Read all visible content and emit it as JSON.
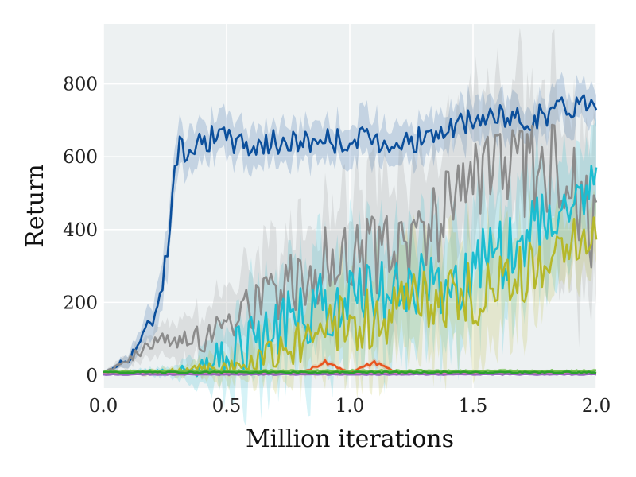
{
  "chart_data": {
    "type": "line",
    "title": "",
    "xlabel": "Million iterations",
    "ylabel": "Return",
    "xlim": [
      0.0,
      2.0
    ],
    "ylim": [
      -35,
      965
    ],
    "x_ticks": [
      0.0,
      0.5,
      1.0,
      1.5,
      2.0
    ],
    "x_tick_labels": [
      "0.0",
      "0.5",
      "1.0",
      "1.5",
      "2.0"
    ],
    "y_ticks": [
      0,
      200,
      400,
      600,
      800
    ],
    "y_tick_labels": [
      "0",
      "200",
      "400",
      "600",
      "800"
    ],
    "grid": true,
    "legend": "none",
    "background_color": "#edf1f2",
    "x": [
      0.0,
      0.1,
      0.2,
      0.25,
      0.3,
      0.35,
      0.4,
      0.5,
      0.6,
      0.7,
      0.8,
      0.9,
      1.0,
      1.1,
      1.2,
      1.3,
      1.4,
      1.5,
      1.6,
      1.7,
      1.8,
      1.9,
      2.0
    ],
    "series": [
      {
        "color": "#0b4f9c",
        "values": [
          5,
          45,
          150,
          300,
          610,
          640,
          650,
          650,
          630,
          640,
          640,
          650,
          640,
          650,
          640,
          650,
          670,
          700,
          710,
          700,
          720,
          740,
          760
        ],
        "band_width": [
          5,
          20,
          50,
          70,
          70,
          70,
          60,
          60,
          60,
          60,
          60,
          60,
          60,
          70,
          60,
          60,
          60,
          60,
          60,
          60,
          60,
          60,
          60
        ]
      },
      {
        "color": "#8c8c8c",
        "values": [
          5,
          40,
          90,
          90,
          100,
          100,
          110,
          150,
          190,
          220,
          270,
          300,
          330,
          340,
          350,
          400,
          450,
          500,
          540,
          550,
          560,
          580,
          380
        ],
        "band_width": [
          5,
          20,
          40,
          50,
          60,
          70,
          80,
          100,
          130,
          150,
          170,
          180,
          190,
          200,
          200,
          200,
          210,
          220,
          230,
          240,
          240,
          250,
          250
        ]
      },
      {
        "color": "#1cbdd0",
        "values": [
          5,
          8,
          10,
          10,
          12,
          15,
          20,
          50,
          80,
          120,
          160,
          200,
          210,
          220,
          240,
          240,
          260,
          280,
          330,
          380,
          430,
          490,
          560
        ],
        "band_width": [
          2,
          5,
          10,
          15,
          20,
          40,
          60,
          100,
          140,
          160,
          170,
          170,
          170,
          170,
          170,
          170,
          170,
          170,
          170,
          170,
          160,
          150,
          140
        ]
      },
      {
        "color": "#b5b82a",
        "values": [
          3,
          5,
          8,
          10,
          10,
          12,
          15,
          20,
          30,
          60,
          90,
          130,
          150,
          160,
          180,
          200,
          210,
          220,
          250,
          270,
          320,
          370,
          395
        ],
        "band_width": [
          2,
          5,
          8,
          10,
          15,
          20,
          30,
          40,
          60,
          80,
          100,
          120,
          140,
          150,
          150,
          150,
          150,
          150,
          150,
          140,
          120,
          100,
          100
        ]
      },
      {
        "color": "#e8541e",
        "values": [
          3,
          3,
          3,
          3,
          4,
          4,
          4,
          4,
          4,
          5,
          5,
          35,
          6,
          35,
          5,
          5,
          6,
          5,
          6,
          6,
          5,
          6,
          6
        ],
        "band_width": [
          2,
          2,
          2,
          2,
          2,
          2,
          2,
          2,
          3,
          3,
          3,
          10,
          3,
          10,
          3,
          3,
          3,
          3,
          3,
          3,
          3,
          3,
          3
        ]
      },
      {
        "color": "#6fbf4a",
        "values": [
          10,
          11,
          12,
          12,
          12,
          12,
          12,
          12,
          12,
          12,
          12,
          12,
          12,
          12,
          12,
          12,
          12,
          12,
          12,
          12,
          12,
          12,
          12
        ],
        "band_width": [
          4,
          4,
          4,
          4,
          4,
          4,
          4,
          4,
          4,
          4,
          4,
          4,
          4,
          4,
          4,
          4,
          4,
          4,
          4,
          4,
          4,
          4,
          4
        ]
      },
      {
        "color": "#e377c2",
        "values": [
          5,
          5,
          5,
          5,
          5,
          5,
          5,
          5,
          5,
          5,
          5,
          5,
          5,
          5,
          5,
          5,
          5,
          5,
          5,
          5,
          5,
          5,
          5
        ],
        "band_width": [
          3,
          3,
          3,
          3,
          3,
          3,
          3,
          3,
          3,
          3,
          3,
          3,
          3,
          3,
          3,
          3,
          3,
          3,
          3,
          3,
          3,
          3,
          3
        ]
      },
      {
        "color": "#9467bd",
        "values": [
          2,
          2,
          2,
          2,
          2,
          2,
          2,
          2,
          2,
          2,
          2,
          2,
          2,
          2,
          2,
          2,
          2,
          2,
          2,
          2,
          2,
          2,
          2
        ],
        "band_width": [
          2,
          2,
          2,
          2,
          2,
          2,
          2,
          2,
          2,
          2,
          2,
          2,
          2,
          2,
          2,
          2,
          2,
          2,
          2,
          2,
          2,
          2,
          2
        ]
      },
      {
        "color": "#2ca02c",
        "values": [
          8,
          8,
          8,
          8,
          8,
          8,
          8,
          8,
          8,
          8,
          8,
          8,
          8,
          8,
          8,
          8,
          8,
          8,
          8,
          8,
          8,
          8,
          8
        ],
        "band_width": [
          3,
          3,
          3,
          3,
          3,
          3,
          3,
          3,
          3,
          3,
          3,
          3,
          3,
          3,
          3,
          3,
          3,
          3,
          3,
          3,
          3,
          3,
          3
        ]
      }
    ]
  }
}
